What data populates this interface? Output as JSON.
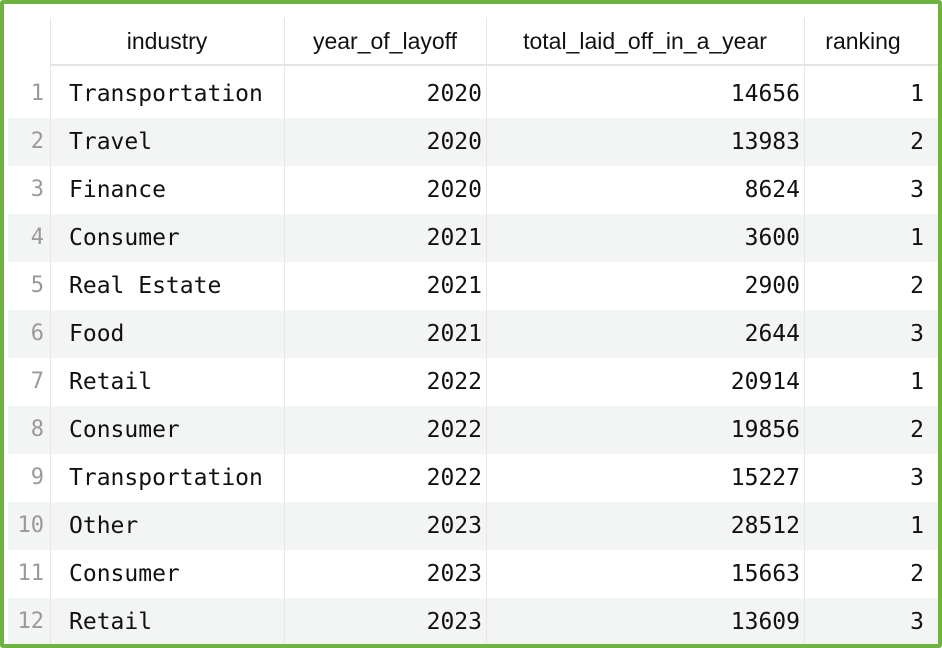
{
  "columns": {
    "industry": "industry",
    "year": "year_of_layoff",
    "total": "total_laid_off_in_a_year",
    "ranking": "ranking"
  },
  "rows": [
    {
      "num": "1",
      "industry": "Transportation",
      "year": "2020",
      "total": "14656",
      "ranking": "1"
    },
    {
      "num": "2",
      "industry": "Travel",
      "year": "2020",
      "total": "13983",
      "ranking": "2"
    },
    {
      "num": "3",
      "industry": "Finance",
      "year": "2020",
      "total": "8624",
      "ranking": "3"
    },
    {
      "num": "4",
      "industry": "Consumer",
      "year": "2021",
      "total": "3600",
      "ranking": "1"
    },
    {
      "num": "5",
      "industry": "Real Estate",
      "year": "2021",
      "total": "2900",
      "ranking": "2"
    },
    {
      "num": "6",
      "industry": "Food",
      "year": "2021",
      "total": "2644",
      "ranking": "3"
    },
    {
      "num": "7",
      "industry": "Retail",
      "year": "2022",
      "total": "20914",
      "ranking": "1"
    },
    {
      "num": "8",
      "industry": "Consumer",
      "year": "2022",
      "total": "19856",
      "ranking": "2"
    },
    {
      "num": "9",
      "industry": "Transportation",
      "year": "2022",
      "total": "15227",
      "ranking": "3"
    },
    {
      "num": "10",
      "industry": "Other",
      "year": "2023",
      "total": "28512",
      "ranking": "1"
    },
    {
      "num": "11",
      "industry": "Consumer",
      "year": "2023",
      "total": "15663",
      "ranking": "2"
    },
    {
      "num": "12",
      "industry": "Retail",
      "year": "2023",
      "total": "13609",
      "ranking": "3"
    }
  ],
  "colors": {
    "frame_border": "#6db341",
    "alt_row": "#f3f4f4",
    "row_number": "#9a9a9a"
  }
}
